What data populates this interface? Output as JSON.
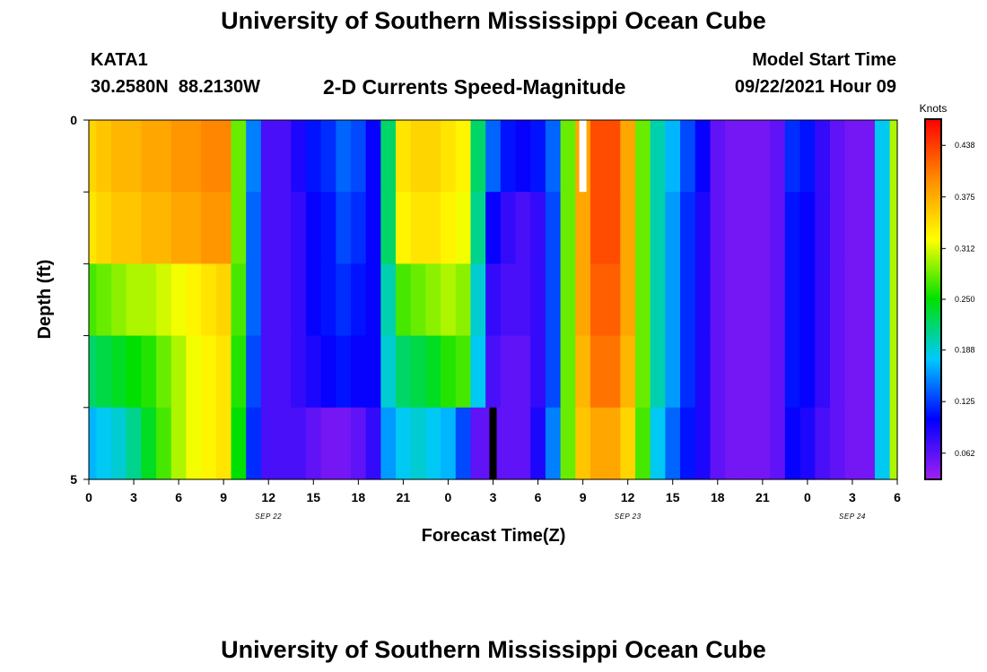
{
  "page": {
    "title": "University of Southern Mississippi Ocean Cube",
    "footer_title": "University of Southern Mississippi Ocean Cube",
    "station_id": "KATA1",
    "coordinates": "30.2580N  88.2130W",
    "chart_title": "2-D Currents Speed-Magnitude",
    "model_label": "Model Start Time",
    "model_start": "09/22/2021 Hour 09"
  },
  "chart_data": {
    "type": "heatmap",
    "title": "2-D Currents Speed-Magnitude",
    "xlabel": "Forecast Time(Z)",
    "ylabel": "Depth (ft)",
    "x_start_hour": 0,
    "x_step_hours": 1,
    "xlim": [
      0,
      54
    ],
    "ylim": [
      0,
      5
    ],
    "y_ticks": [
      0,
      1,
      2,
      3,
      4,
      5
    ],
    "y_tick_labels": [
      "0",
      "",
      "",
      "",
      "",
      "5"
    ],
    "x_tick_hours": [
      0,
      3,
      6,
      9,
      12,
      15,
      18,
      21,
      24,
      27,
      30,
      33,
      36,
      39,
      42,
      45,
      48,
      51,
      54
    ],
    "x_tick_labels": [
      "0",
      "3",
      "6",
      "9",
      "12",
      "15",
      "18",
      "21",
      "0",
      "3",
      "6",
      "9",
      "12",
      "15",
      "18",
      "21",
      "0",
      "3",
      "6"
    ],
    "day_labels": [
      {
        "hour": 12,
        "text": "SEP 22"
      },
      {
        "hour": 36,
        "text": "SEP 23"
      },
      {
        "hour": 51,
        "text": "SEP 24"
      }
    ],
    "depth_rows": [
      0,
      1,
      2,
      3,
      4
    ],
    "speed_knots_by_depth": [
      [
        0.35,
        0.36,
        0.37,
        0.37,
        0.38,
        0.38,
        0.39,
        0.39,
        0.4,
        0.4,
        0.28,
        0.15,
        0.07,
        0.07,
        0.09,
        0.11,
        0.12,
        0.14,
        0.13,
        0.1,
        0.22,
        0.34,
        0.35,
        0.35,
        0.34,
        0.33,
        0.22,
        0.14,
        0.11,
        0.1,
        0.11,
        0.14,
        0.28,
        0.38,
        0.43,
        0.43,
        0.38,
        0.28,
        0.2,
        0.17,
        0.13,
        0.1,
        0.06,
        0.05,
        0.05,
        0.05,
        0.06,
        0.12,
        0.11,
        0.08,
        0.06,
        0.05,
        0.05,
        0.18,
        0.3
      ],
      [
        0.34,
        0.35,
        0.36,
        0.36,
        0.37,
        0.37,
        0.38,
        0.38,
        0.39,
        0.39,
        0.28,
        0.14,
        0.07,
        0.07,
        0.08,
        0.1,
        0.11,
        0.13,
        0.12,
        0.1,
        0.22,
        0.33,
        0.34,
        0.34,
        0.33,
        0.32,
        0.21,
        0.1,
        0.08,
        0.07,
        0.08,
        0.13,
        0.28,
        0.38,
        0.43,
        0.43,
        0.38,
        0.28,
        0.2,
        0.16,
        0.12,
        0.09,
        0.06,
        0.05,
        0.05,
        0.05,
        0.06,
        0.11,
        0.1,
        0.08,
        0.06,
        0.05,
        0.05,
        0.18,
        0.3
      ],
      [
        0.27,
        0.28,
        0.29,
        0.3,
        0.3,
        0.31,
        0.32,
        0.33,
        0.34,
        0.35,
        0.27,
        0.14,
        0.07,
        0.07,
        0.08,
        0.1,
        0.11,
        0.12,
        0.11,
        0.1,
        0.2,
        0.27,
        0.28,
        0.29,
        0.3,
        0.29,
        0.19,
        0.08,
        0.07,
        0.07,
        0.08,
        0.13,
        0.28,
        0.38,
        0.42,
        0.42,
        0.38,
        0.28,
        0.2,
        0.16,
        0.12,
        0.09,
        0.06,
        0.05,
        0.05,
        0.05,
        0.06,
        0.11,
        0.1,
        0.08,
        0.06,
        0.05,
        0.05,
        0.18,
        0.3
      ],
      [
        0.22,
        0.23,
        0.24,
        0.25,
        0.26,
        0.28,
        0.3,
        0.32,
        0.33,
        0.34,
        0.26,
        0.13,
        0.07,
        0.07,
        0.08,
        0.09,
        0.1,
        0.11,
        0.1,
        0.1,
        0.19,
        0.22,
        0.23,
        0.24,
        0.26,
        0.27,
        0.18,
        0.07,
        0.06,
        0.06,
        0.08,
        0.13,
        0.28,
        0.37,
        0.41,
        0.41,
        0.37,
        0.28,
        0.2,
        0.16,
        0.12,
        0.09,
        0.06,
        0.05,
        0.05,
        0.05,
        0.06,
        0.11,
        0.1,
        0.08,
        0.06,
        0.05,
        0.05,
        0.18,
        0.3
      ],
      [
        0.17,
        0.18,
        0.19,
        0.21,
        0.24,
        0.27,
        0.3,
        0.32,
        0.33,
        0.34,
        0.25,
        0.12,
        0.07,
        0.07,
        0.07,
        0.06,
        0.05,
        0.05,
        0.06,
        0.08,
        0.16,
        0.18,
        0.19,
        0.18,
        0.17,
        0.13,
        0.06,
        0.06,
        0.06,
        0.06,
        0.09,
        0.15,
        0.28,
        0.36,
        0.38,
        0.38,
        0.35,
        0.27,
        0.18,
        0.14,
        0.11,
        0.09,
        0.06,
        0.05,
        0.05,
        0.05,
        0.06,
        0.1,
        0.09,
        0.07,
        0.06,
        0.05,
        0.05,
        0.18,
        0.3
      ]
    ],
    "colorbar": {
      "label": "Knots",
      "min": 0.03,
      "max": 0.47,
      "tick_values": [
        0.062,
        0.125,
        0.188,
        0.25,
        0.312,
        0.375,
        0.438
      ],
      "tick_labels": [
        "0.062",
        "0.125",
        "0.188",
        "0.250",
        "0.312",
        "0.375",
        "0.438"
      ],
      "colors": [
        "#a020f0",
        "#0000ff",
        "#00c8ff",
        "#00e000",
        "#ffff00",
        "#ff8c00",
        "#ff0000"
      ]
    },
    "markers": [
      {
        "name": "model-start-marker",
        "hour": 33,
        "depth_row": 0,
        "color": "#ffffff"
      },
      {
        "name": "current-time-marker",
        "hour": 27,
        "depth_row": 4,
        "color": "#000000"
      }
    ]
  }
}
